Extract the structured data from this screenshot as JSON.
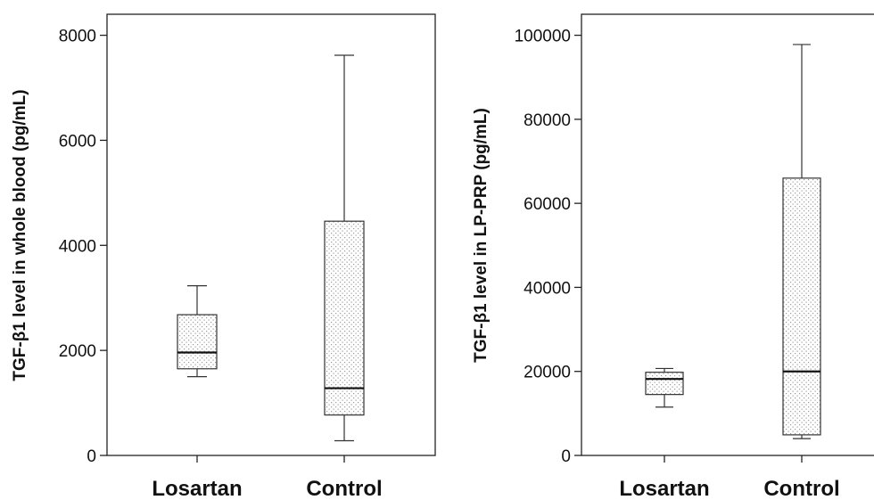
{
  "chart_data": [
    {
      "type": "box",
      "title": "",
      "xlabel": "",
      "ylabel": "TGF-β1 level in whole blood (pg/mL)",
      "ylim": [
        0,
        8400
      ],
      "yticks": [
        0,
        2000,
        4000,
        6000,
        8000
      ],
      "ytick_labels": [
        "0",
        "2000",
        "4000",
        "6000",
        "8000"
      ],
      "grid": false,
      "legend": "none",
      "categories": [
        "Losartan",
        "Control"
      ],
      "boxes": [
        {
          "category": "Losartan",
          "min": 1500,
          "q1": 1650,
          "median": 1960,
          "q3": 2680,
          "max": 3230
        },
        {
          "category": "Control",
          "min": 280,
          "q1": 770,
          "median": 1280,
          "q3": 4460,
          "max": 7620
        }
      ]
    },
    {
      "type": "box",
      "title": "",
      "xlabel": "",
      "ylabel": "TGF-β1 level in LP-PRP (pg/mL)",
      "ylim": [
        0,
        105000
      ],
      "yticks": [
        0,
        20000,
        40000,
        60000,
        80000,
        100000
      ],
      "ytick_labels": [
        "0",
        "20000",
        "40000",
        "60000",
        "80000",
        "100000"
      ],
      "grid": false,
      "legend": "none",
      "categories": [
        "Losartan",
        "Control"
      ],
      "boxes": [
        {
          "category": "Losartan",
          "min": 11500,
          "q1": 14500,
          "median": 18200,
          "q3": 19800,
          "max": 20700
        },
        {
          "category": "Control",
          "min": 4000,
          "q1": 4900,
          "median": 20000,
          "q3": 66000,
          "max": 97800
        }
      ]
    }
  ]
}
